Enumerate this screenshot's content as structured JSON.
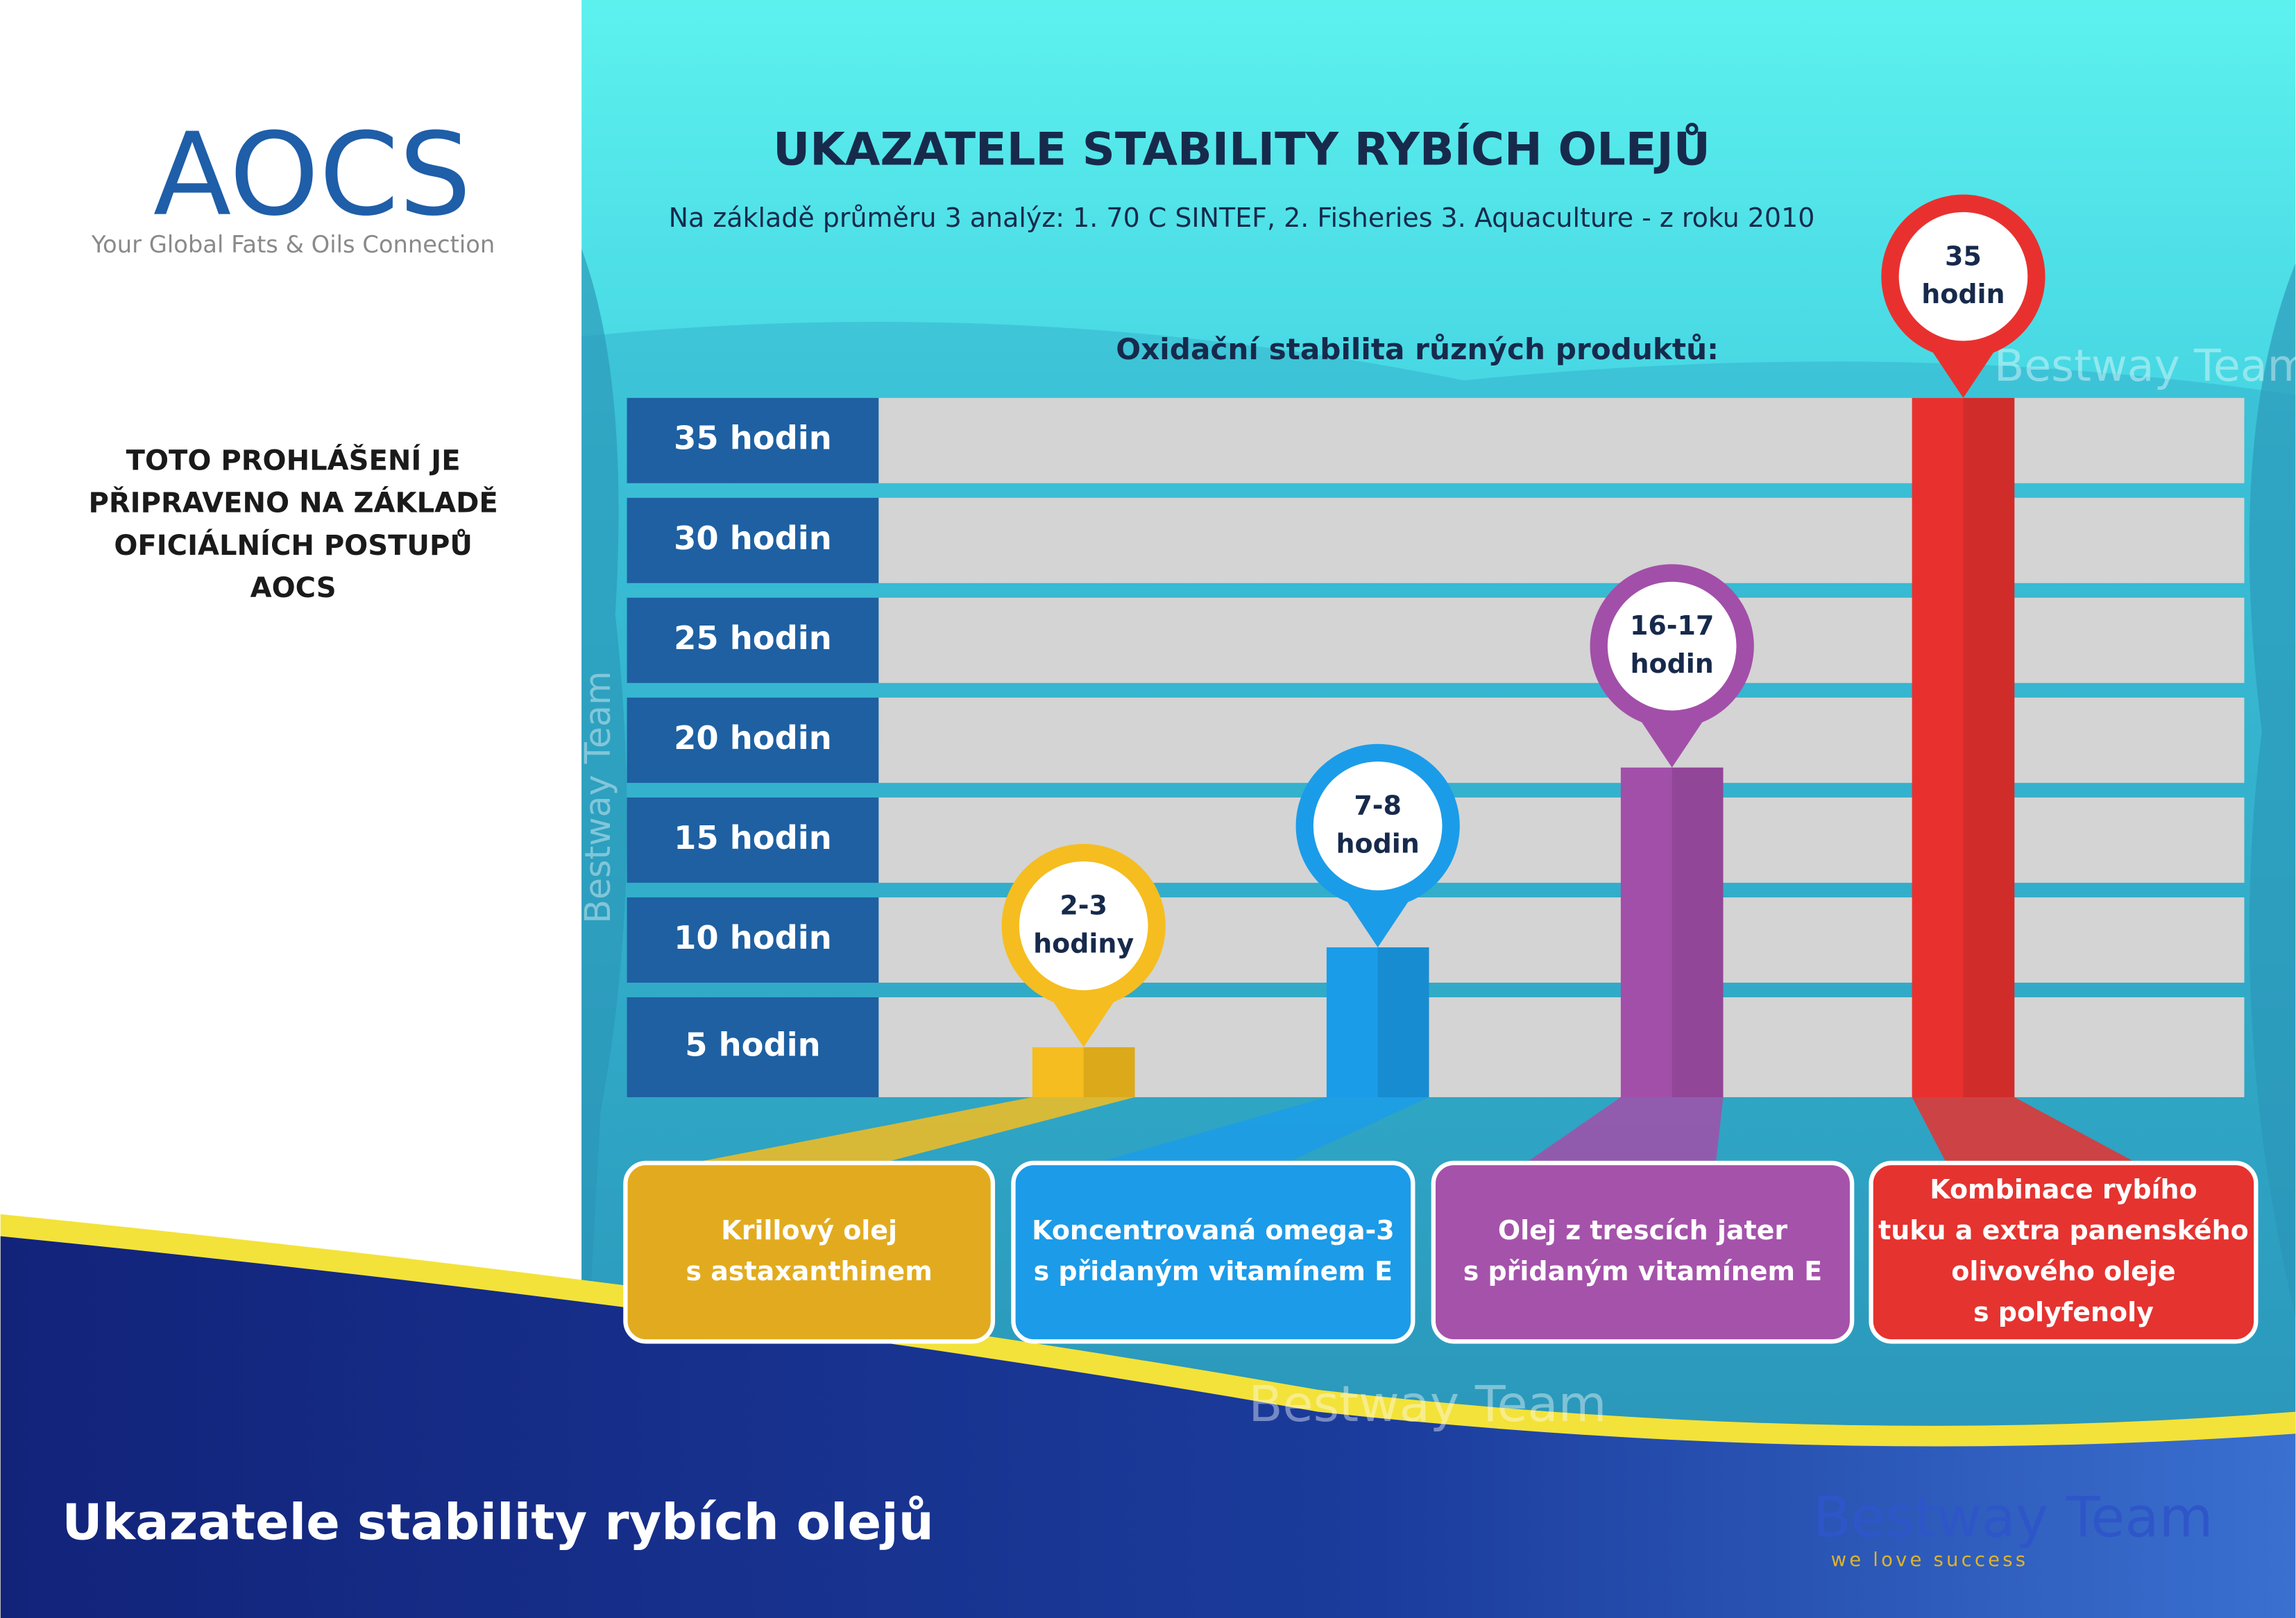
{
  "header": {
    "logo": "AOCS",
    "tagline": "Your Global Fats & Oils Connection"
  },
  "statement": [
    "TOTO PROHLÁŠENÍ JE",
    "PŘIPRAVENO NA ZÁKLADĚ",
    "OFICIÁLNÍCH POSTUPŮ",
    "AOCS"
  ],
  "chart_data": {
    "type": "bar",
    "title": "UKAZATELE STABILITY RYBÍCH OLEJŮ",
    "subtitle": "Na základě průměru 3 analýz: 1. 70 C SINTEF, 2. Fisheries 3. Aquaculture - z roku 2010",
    "y_label": "Oxidační stabilita různých produktů:",
    "categories": [
      "Krillový olej\ns astaxanthinem",
      "Koncentrovaná omega-3\ns přidaným vitamínem E",
      "Olej z trescích jater\ns přidaným vitamínem E",
      "Kombinace rybího\ntuku a extra panenského\nolivového oleje\ns polyfenoly"
    ],
    "values": [
      2.5,
      7.5,
      16.5,
      35
    ],
    "value_labels": [
      "2-3\nhodiny",
      "7-8\nhodin",
      "16-17\nhodin",
      "35\nhodin"
    ],
    "colors": [
      "#f5bd1f",
      "#1b9ce9",
      "#a24fa9",
      "#e8312f"
    ],
    "box_colors": [
      "#e2ab1f",
      "#1c9be8",
      "#a552ab",
      "#e53330"
    ],
    "ylim": [
      0,
      35
    ],
    "yticks": [
      {
        "value": 5,
        "label": "5 hodin"
      },
      {
        "value": 10,
        "label": "10 hodin"
      },
      {
        "value": 15,
        "label": "15 hodin"
      },
      {
        "value": 20,
        "label": "20 hodin"
      },
      {
        "value": 25,
        "label": "25 hodin"
      },
      {
        "value": 30,
        "label": "30 hodin"
      },
      {
        "value": 35,
        "label": "35 hodin"
      }
    ],
    "grid": true
  },
  "watermark": "Bestway Team",
  "footer": {
    "title": "Ukazatele stability rybích olejů",
    "brand": "Bestway Team",
    "slogan": "we love success"
  }
}
